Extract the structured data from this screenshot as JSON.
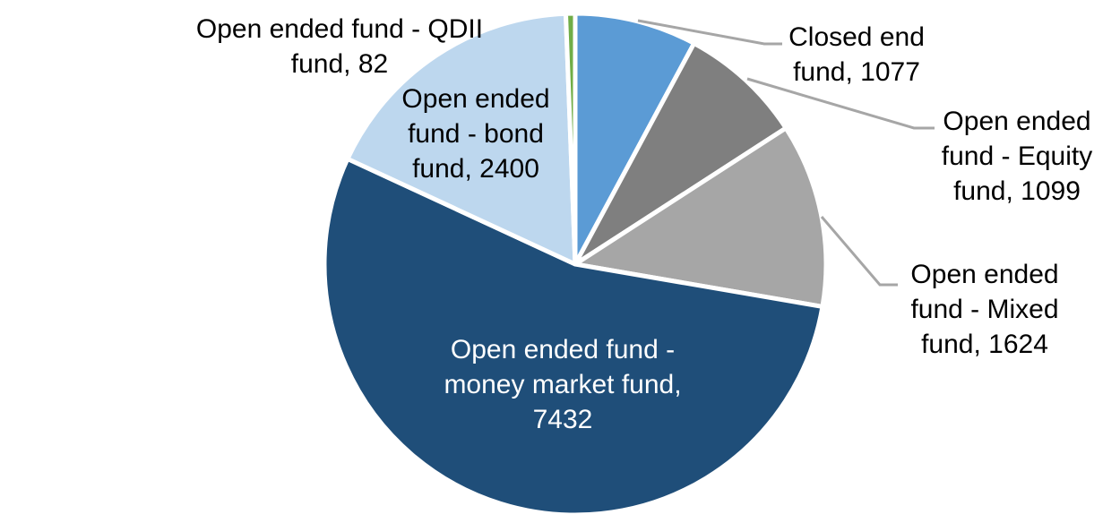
{
  "chart_data": {
    "type": "pie",
    "total": 13714,
    "direction": "clockwise",
    "start_angle_deg": 0,
    "slices": [
      {
        "key": "closed-end-fund",
        "name": "Closed end fund",
        "value": 1077,
        "color": "#5B9BD5",
        "label": "Closed end fund, 1077",
        "label_lines": [
          "Closed end",
          "fund, 1077"
        ],
        "label_color": "#000000",
        "leader_line": true
      },
      {
        "key": "equity-fund",
        "name": "Open ended fund - Equity fund",
        "value": 1099,
        "color": "#7F7F7F",
        "label": "Open ended fund - Equity fund, 1099",
        "label_lines": [
          "Open ended",
          "fund - Equity",
          "fund, 1099"
        ],
        "label_color": "#000000",
        "leader_line": true
      },
      {
        "key": "mixed-fund",
        "name": "Open ended fund - Mixed fund",
        "value": 1624,
        "color": "#A6A6A6",
        "label": "Open ended fund - Mixed fund, 1624",
        "label_lines": [
          "Open ended",
          "fund - Mixed",
          "fund, 1624"
        ],
        "label_color": "#000000",
        "leader_line": true
      },
      {
        "key": "money-market-fund",
        "name": "Open ended fund - money market fund",
        "value": 7432,
        "color": "#1F4E79",
        "label": "Open ended fund - money market fund, 7432",
        "label_lines": [
          "Open ended fund -",
          "money market fund,",
          "7432"
        ],
        "label_color": "#FFFFFF",
        "leader_line": false
      },
      {
        "key": "bond-fund",
        "name": "Open ended fund - bond fund",
        "value": 2400,
        "color": "#BDD7EE",
        "label": "Open ended fund - bond fund, 2400",
        "label_lines": [
          "Open ended",
          "fund - bond",
          "fund, 2400"
        ],
        "label_color": "#000000",
        "leader_line": false
      },
      {
        "key": "qdii-fund",
        "name": "Open ended fund - QDII fund",
        "value": 82,
        "color": "#70AD47",
        "label": "Open ended fund - QDII fund, 82",
        "label_lines": [
          "Open ended fund - QDII",
          "fund, 82"
        ],
        "label_color": "#000000",
        "leader_line": false
      }
    ],
    "layout": {
      "slice_border_color": "#FFFFFF",
      "leader_line_color": "#A6A6A6",
      "background_color": "#FFFFFF",
      "legend": "none",
      "labels": "category-and-value"
    }
  }
}
